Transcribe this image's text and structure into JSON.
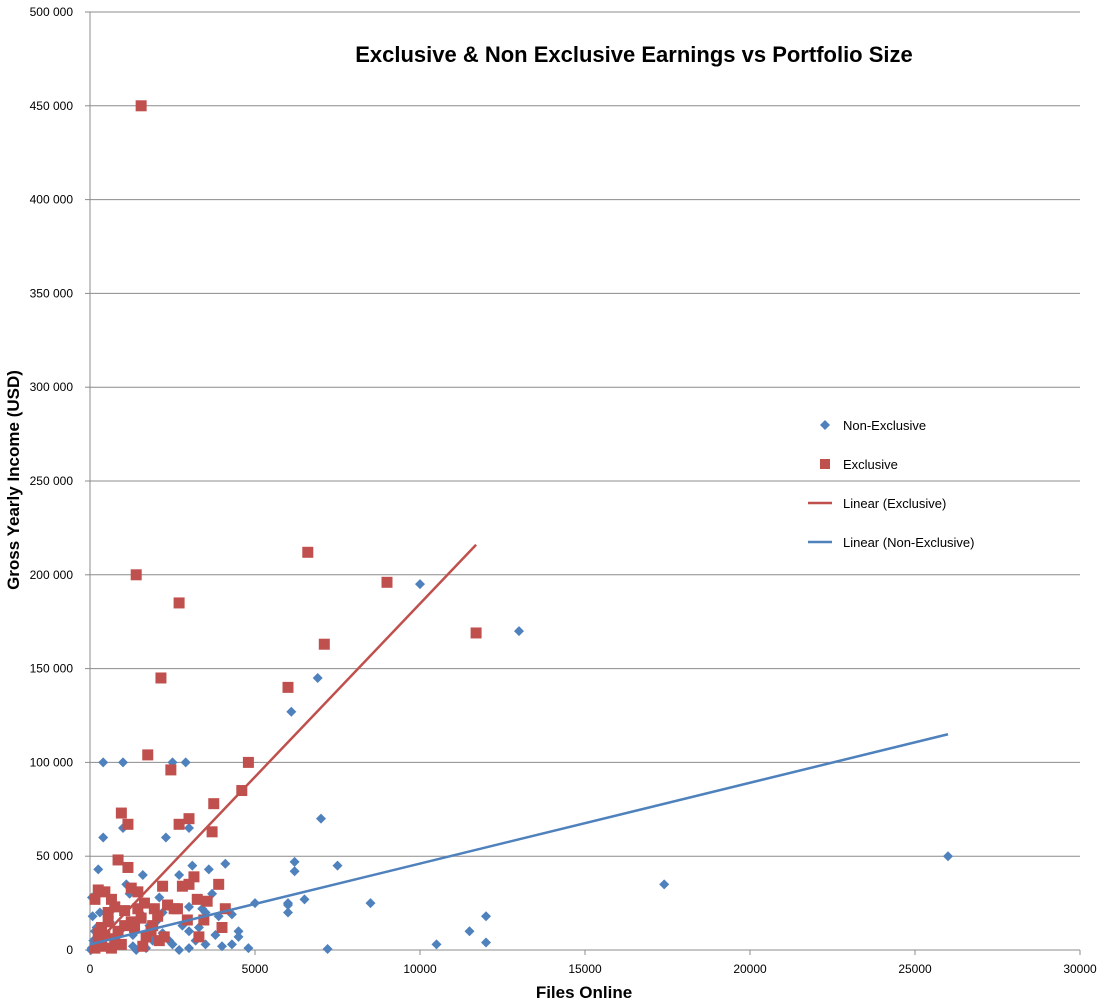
{
  "chart_data": {
    "type": "scatter",
    "title": "Exclusive & Non Exclusive Earnings vs Portfolio Size",
    "xlabel": "Files Online",
    "ylabel": "Gross Yearly Income (USD)",
    "xlim": [
      0,
      30000
    ],
    "ylim": [
      0,
      500000
    ],
    "xticks": [
      0,
      5000,
      10000,
      15000,
      20000,
      25000,
      30000
    ],
    "xtick_labels": [
      "0",
      "5000",
      "10000",
      "15000",
      "20000",
      "25000",
      "30000"
    ],
    "yticks": [
      0,
      50000,
      100000,
      150000,
      200000,
      250000,
      300000,
      350000,
      400000,
      450000,
      500000
    ],
    "ytick_labels": [
      "0",
      "50 000",
      "100 000",
      "150 000",
      "200 000",
      "250 000",
      "300 000",
      "350 000",
      "400 000",
      "450 000",
      "500 000"
    ],
    "grid": "horizontal",
    "legend_position": "right",
    "series": [
      {
        "name": "Non-Exclusive",
        "marker": "diamond",
        "color": "#4F81BD",
        "points": [
          [
            26000,
            50000
          ],
          [
            17400,
            35000
          ],
          [
            13000,
            170000
          ],
          [
            12000,
            18000
          ],
          [
            12000,
            4000
          ],
          [
            11500,
            10000
          ],
          [
            10500,
            3000
          ],
          [
            10000,
            195000
          ],
          [
            8500,
            25000
          ],
          [
            7500,
            45000
          ],
          [
            7200,
            500
          ],
          [
            7000,
            70000
          ],
          [
            6900,
            145000
          ],
          [
            6500,
            27000
          ],
          [
            6200,
            47000
          ],
          [
            6200,
            42000
          ],
          [
            6100,
            127000
          ],
          [
            6000,
            25000
          ],
          [
            6000,
            20000
          ],
          [
            6000,
            24000
          ],
          [
            5000,
            25000
          ],
          [
            4800,
            1000
          ],
          [
            4500,
            10000
          ],
          [
            4500,
            7000
          ],
          [
            4300,
            19000
          ],
          [
            4300,
            3000
          ],
          [
            4100,
            46000
          ],
          [
            4000,
            2000
          ],
          [
            3900,
            18000
          ],
          [
            3700,
            30000
          ],
          [
            3600,
            43000
          ],
          [
            3500,
            20000
          ],
          [
            3500,
            3000
          ],
          [
            3400,
            22000
          ],
          [
            3200,
            5000
          ],
          [
            3100,
            45000
          ],
          [
            3000,
            65000
          ],
          [
            3000,
            10000
          ],
          [
            3000,
            1000
          ],
          [
            3000,
            23000
          ],
          [
            2900,
            100000
          ],
          [
            2800,
            13000
          ],
          [
            2700,
            0
          ],
          [
            2700,
            40000
          ],
          [
            2500,
            100000
          ],
          [
            2500,
            3000
          ],
          [
            2400,
            5000
          ],
          [
            2300,
            60000
          ],
          [
            2200,
            20000
          ],
          [
            2100,
            28000
          ],
          [
            2000,
            15000
          ],
          [
            1900,
            5000
          ],
          [
            1800,
            13000
          ],
          [
            1600,
            40000
          ],
          [
            1500,
            20000
          ],
          [
            1400,
            0
          ],
          [
            1300,
            2000
          ],
          [
            1200,
            30000
          ],
          [
            1100,
            35000
          ],
          [
            1000,
            65000
          ],
          [
            1000,
            100000
          ],
          [
            900,
            10000
          ],
          [
            800,
            5000
          ],
          [
            700,
            3000
          ],
          [
            600,
            15000
          ],
          [
            500,
            8000
          ],
          [
            400,
            60000
          ],
          [
            400,
            100000
          ],
          [
            300,
            20000
          ],
          [
            250,
            43000
          ],
          [
            200,
            2000
          ],
          [
            150,
            10000
          ],
          [
            100,
            5000
          ],
          [
            80,
            18000
          ],
          [
            60,
            28000
          ],
          [
            50,
            1000
          ],
          [
            30,
            0
          ],
          [
            200,
            12000
          ],
          [
            700,
            22000
          ],
          [
            1300,
            8000
          ],
          [
            1700,
            1000
          ],
          [
            2200,
            9000
          ],
          [
            3300,
            12000
          ],
          [
            3800,
            8000
          ]
        ]
      },
      {
        "name": "Exclusive",
        "marker": "square",
        "color": "#C0504D",
        "points": [
          [
            1550,
            450000
          ],
          [
            6600,
            212000
          ],
          [
            9000,
            196000
          ],
          [
            1400,
            200000
          ],
          [
            2700,
            185000
          ],
          [
            7100,
            163000
          ],
          [
            11700,
            169000
          ],
          [
            2150,
            145000
          ],
          [
            6000,
            140000
          ],
          [
            1750,
            104000
          ],
          [
            4800,
            100000
          ],
          [
            2450,
            96000
          ],
          [
            4600,
            85000
          ],
          [
            3750,
            78000
          ],
          [
            950,
            73000
          ],
          [
            1150,
            67000
          ],
          [
            2700,
            67000
          ],
          [
            3000,
            70000
          ],
          [
            3700,
            63000
          ],
          [
            850,
            48000
          ],
          [
            1150,
            44000
          ],
          [
            3150,
            39000
          ],
          [
            3900,
            35000
          ],
          [
            3000,
            35000
          ],
          [
            2800,
            34000
          ],
          [
            2200,
            34000
          ],
          [
            1450,
            31000
          ],
          [
            1250,
            33000
          ],
          [
            450,
            31000
          ],
          [
            250,
            32000
          ],
          [
            150,
            27000
          ],
          [
            650,
            27000
          ],
          [
            1650,
            25000
          ],
          [
            1950,
            22000
          ],
          [
            2350,
            24000
          ],
          [
            2550,
            22000
          ],
          [
            3250,
            27000
          ],
          [
            3550,
            26000
          ],
          [
            4100,
            22000
          ],
          [
            3450,
            16000
          ],
          [
            2950,
            16000
          ],
          [
            2050,
            18000
          ],
          [
            1550,
            17000
          ],
          [
            1050,
            21000
          ],
          [
            750,
            23000
          ],
          [
            550,
            15000
          ],
          [
            350,
            12000
          ],
          [
            1350,
            12000
          ],
          [
            1850,
            10000
          ],
          [
            2250,
            7000
          ],
          [
            4000,
            12000
          ],
          [
            3300,
            7000
          ],
          [
            2100,
            5000
          ],
          [
            1600,
            2000
          ],
          [
            950,
            3000
          ],
          [
            650,
            1000
          ],
          [
            250,
            4000
          ],
          [
            150,
            1000
          ],
          [
            450,
            8000
          ],
          [
            850,
            10000
          ],
          [
            1250,
            15000
          ],
          [
            1700,
            7000
          ],
          [
            2650,
            22000
          ],
          [
            550,
            20000
          ],
          [
            1050,
            13000
          ],
          [
            350,
            2000
          ],
          [
            750,
            6000
          ],
          [
            1900,
            13000
          ],
          [
            1450,
            22000
          ],
          [
            250,
            9000
          ]
        ]
      }
    ],
    "trendlines": [
      {
        "name": "Linear (Exclusive)",
        "color": "#C0504D",
        "x": [
          0,
          11700
        ],
        "y": [
          0,
          216000
        ]
      },
      {
        "name": "Linear (Non-Exclusive)",
        "color": "#4F81BD",
        "x": [
          0,
          26000
        ],
        "y": [
          3000,
          115000
        ]
      }
    ]
  }
}
